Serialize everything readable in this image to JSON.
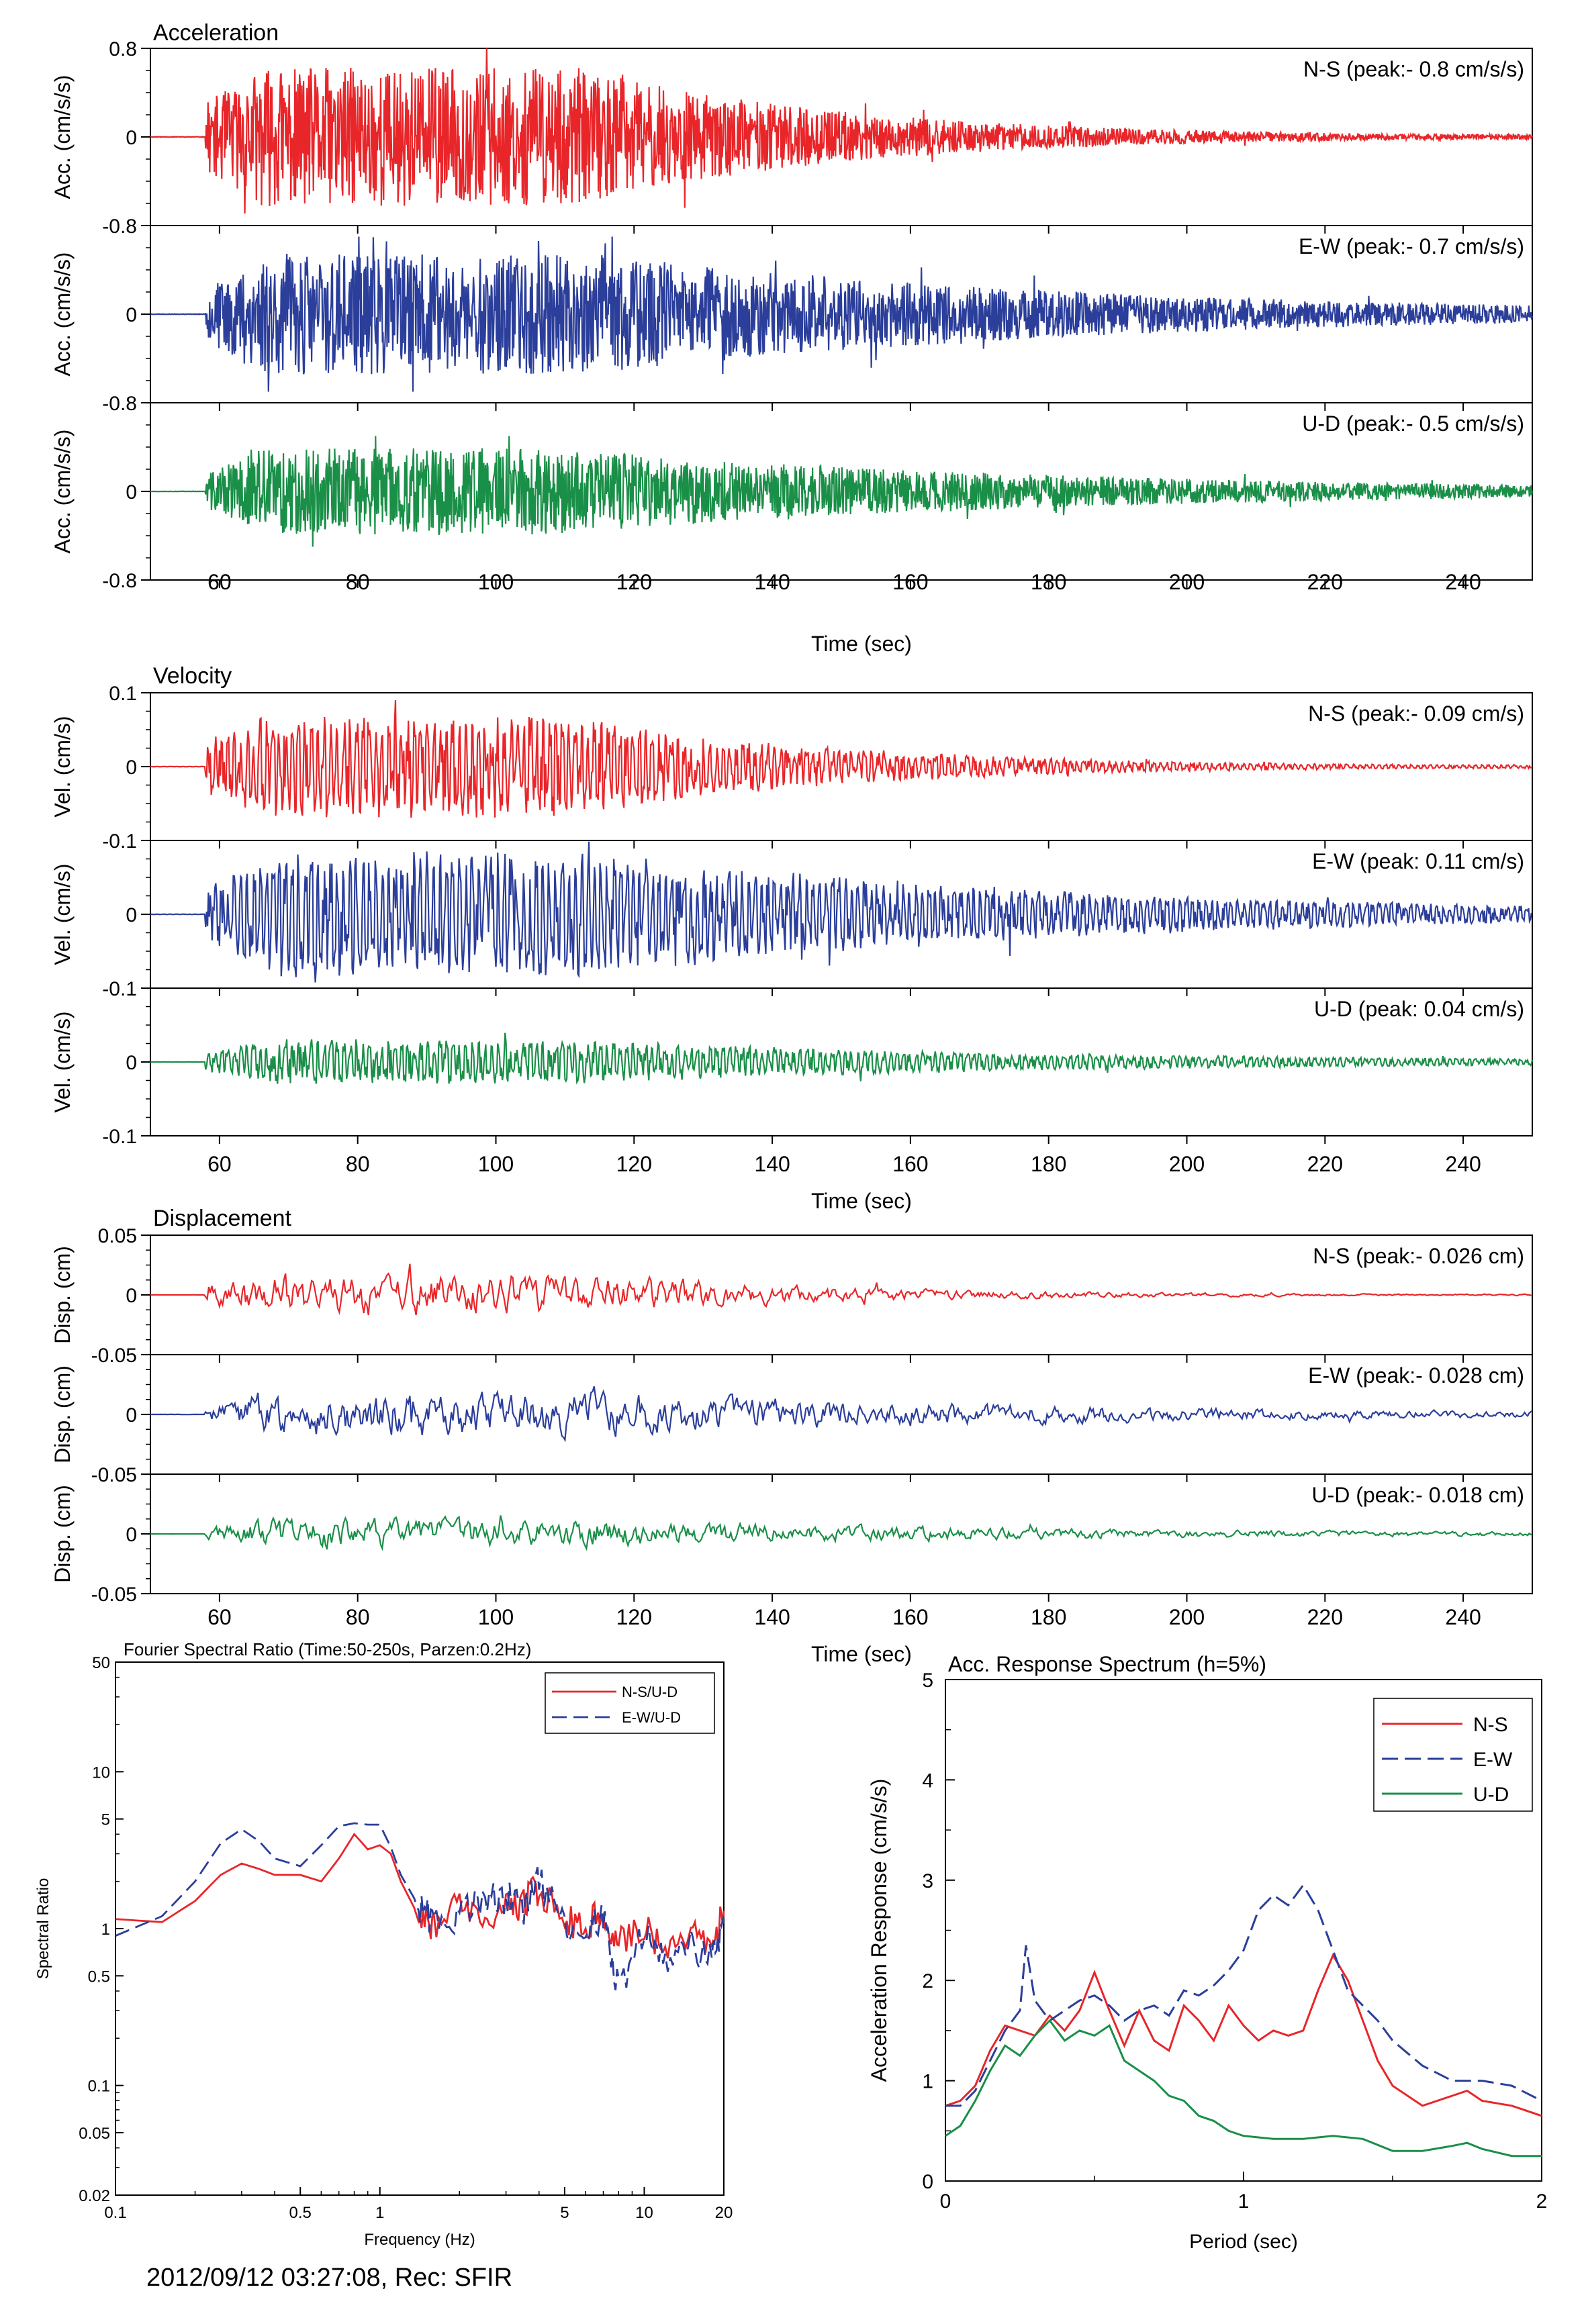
{
  "footer": "2012/09/12 03:27:08, Rec: SFIR",
  "colors": {
    "ns": "#e8262a",
    "ew": "#2b3e9a",
    "ud": "#1a8f48",
    "axis": "#000000"
  },
  "chart_data": [
    {
      "type": "line",
      "title": "Acceleration",
      "xlabel": "Time (sec)",
      "xlim": [
        50,
        250
      ],
      "xticks": [
        60,
        80,
        100,
        120,
        140,
        160,
        180,
        200,
        220,
        240
      ],
      "panels": [
        {
          "component": "N-S",
          "label": "N-S (peak:- 0.8 cm/s/s)",
          "ylabel": "Acc. (cm/s/s)",
          "ylim": [
            -0.8,
            0.8
          ],
          "yticks": [
            "0.8",
            "0",
            "-0.8"
          ],
          "peak": 0.8,
          "color": "#e8262a",
          "seed": 11
        },
        {
          "component": "E-W",
          "label": "E-W (peak:- 0.7 cm/s/s)",
          "ylabel": "Acc. (cm/s/s)",
          "ylim": [
            -0.8,
            0.8
          ],
          "yticks": [
            "",
            "0",
            "-0.8"
          ],
          "peak": 0.7,
          "color": "#2b3e9a",
          "seed": 23
        },
        {
          "component": "U-D",
          "label": "U-D (peak:- 0.5 cm/s/s)",
          "ylabel": "Acc. (cm/s/s)",
          "ylim": [
            -0.8,
            0.8
          ],
          "yticks": [
            "",
            "0",
            "-0.8"
          ],
          "peak": 0.5,
          "color": "#1a8f48",
          "seed": 37
        }
      ]
    },
    {
      "type": "line",
      "title": "Velocity",
      "xlabel": "Time (sec)",
      "xlim": [
        50,
        250
      ],
      "xticks": [
        60,
        80,
        100,
        120,
        140,
        160,
        180,
        200,
        220,
        240
      ],
      "panels": [
        {
          "component": "N-S",
          "label": "N-S (peak:- 0.09 cm/s)",
          "ylabel": "Vel. (cm/s)",
          "ylim": [
            -0.1,
            0.1
          ],
          "yticks": [
            "0.1",
            "0",
            "-0.1"
          ],
          "peak": 0.09,
          "color": "#e8262a",
          "seed": 41
        },
        {
          "component": "E-W",
          "label": "E-W (peak: 0.11 cm/s)",
          "ylabel": "Vel. (cm/s)",
          "ylim": [
            -0.1,
            0.1
          ],
          "yticks": [
            "",
            "0",
            "-0.1"
          ],
          "peak": 0.11,
          "color": "#2b3e9a",
          "seed": 53
        },
        {
          "component": "U-D",
          "label": "U-D (peak: 0.04 cm/s)",
          "ylabel": "Vel. (cm/s)",
          "ylim": [
            -0.1,
            0.1
          ],
          "yticks": [
            "",
            "0",
            "-0.1"
          ],
          "peak": 0.04,
          "color": "#1a8f48",
          "seed": 67
        }
      ]
    },
    {
      "type": "line",
      "title": "Displacement",
      "xlabel": "Time (sec)",
      "xlim": [
        50,
        250
      ],
      "xticks": [
        60,
        80,
        100,
        120,
        140,
        160,
        180,
        200,
        220,
        240
      ],
      "panels": [
        {
          "component": "N-S",
          "label": "N-S (peak:- 0.026 cm)",
          "ylabel": "Disp. (cm)",
          "ylim": [
            -0.05,
            0.05
          ],
          "yticks": [
            "0.05",
            "0",
            "-0.05"
          ],
          "peak": 0.026,
          "color": "#e8262a",
          "seed": 71
        },
        {
          "component": "E-W",
          "label": "E-W (peak:- 0.028 cm)",
          "ylabel": "Disp. (cm)",
          "ylim": [
            -0.05,
            0.05
          ],
          "yticks": [
            "",
            "0",
            "-0.05"
          ],
          "peak": 0.028,
          "color": "#2b3e9a",
          "seed": 83
        },
        {
          "component": "U-D",
          "label": "U-D (peak:- 0.018 cm)",
          "ylabel": "Disp. (cm)",
          "ylim": [
            -0.05,
            0.05
          ],
          "yticks": [
            "",
            "0",
            "-0.05"
          ],
          "peak": 0.018,
          "color": "#1a8f48",
          "seed": 97
        }
      ]
    },
    {
      "type": "line",
      "title": "Fourier Spectral Ratio (Time:50-250s, Parzen:0.2Hz)",
      "xlabel": "Frequency (Hz)",
      "ylabel": "Spectral Ratio",
      "xscale": "log",
      "yscale": "log",
      "xlim": [
        0.1,
        20
      ],
      "ylim": [
        0.02,
        50
      ],
      "xticks": [
        "0.1",
        "0.5",
        "1",
        "5",
        "10",
        "20"
      ],
      "yticks": [
        "50",
        "10",
        "5",
        "1",
        "0.5",
        "0.1",
        "0.05",
        "0.02"
      ],
      "legend_position": "top-right",
      "series": [
        {
          "name": "N-S/U-D",
          "color": "#e8262a",
          "dash": "solid",
          "x": [
            0.1,
            0.15,
            0.2,
            0.25,
            0.3,
            0.35,
            0.4,
            0.5,
            0.6,
            0.7,
            0.8,
            0.9,
            1.0,
            1.1,
            1.2,
            1.4,
            1.6,
            2.0,
            2.5,
            3.0,
            3.5,
            4.0,
            5.0,
            6.0,
            7.0,
            8.0,
            10.0,
            12.0,
            15.0,
            18.0,
            20.0
          ],
          "y": [
            1.15,
            1.1,
            1.5,
            2.2,
            2.6,
            2.4,
            2.2,
            2.2,
            2.0,
            2.8,
            4.0,
            3.2,
            3.4,
            3.0,
            2.0,
            1.2,
            1.0,
            1.4,
            1.1,
            1.3,
            1.5,
            1.8,
            1.2,
            1.0,
            1.3,
            0.8,
            1.1,
            0.7,
            0.9,
            0.7,
            1.3
          ]
        },
        {
          "name": "E-W/U-D",
          "color": "#2b3e9a",
          "dash": "dashed",
          "x": [
            0.1,
            0.15,
            0.2,
            0.25,
            0.3,
            0.35,
            0.4,
            0.5,
            0.6,
            0.7,
            0.8,
            0.9,
            1.0,
            1.1,
            1.2,
            1.4,
            1.6,
            2.0,
            2.5,
            3.0,
            3.5,
            4.0,
            5.0,
            6.0,
            7.0,
            8.0,
            10.0,
            12.0,
            15.0,
            18.0,
            20.0
          ],
          "y": [
            0.9,
            1.2,
            2.0,
            3.5,
            4.3,
            3.6,
            2.8,
            2.5,
            3.4,
            4.5,
            4.7,
            4.6,
            4.6,
            3.3,
            2.2,
            1.4,
            1.1,
            1.2,
            1.5,
            1.6,
            1.3,
            2.0,
            1.1,
            0.9,
            1.2,
            0.4,
            1.0,
            0.6,
            0.8,
            0.6,
            1.2
          ]
        }
      ]
    },
    {
      "type": "line",
      "title": "Acc. Response Spectrum (h=5%)",
      "xlabel": "Period (sec)",
      "ylabel": "Acceleration Response (cm/s/s)",
      "xlim": [
        0,
        2
      ],
      "ylim": [
        0,
        5
      ],
      "xticks": [
        "0",
        "1",
        "2"
      ],
      "yticks": [
        "0",
        "1",
        "2",
        "3",
        "4",
        "5"
      ],
      "legend_position": "top-right",
      "series": [
        {
          "name": "N-S",
          "color": "#e8262a",
          "dash": "solid",
          "x": [
            0.0,
            0.05,
            0.1,
            0.15,
            0.2,
            0.25,
            0.3,
            0.35,
            0.4,
            0.45,
            0.5,
            0.55,
            0.6,
            0.65,
            0.7,
            0.75,
            0.8,
            0.85,
            0.9,
            0.95,
            1.0,
            1.05,
            1.1,
            1.15,
            1.2,
            1.25,
            1.3,
            1.35,
            1.4,
            1.45,
            1.5,
            1.6,
            1.7,
            1.75,
            1.8,
            1.9,
            2.0
          ],
          "y": [
            0.75,
            0.8,
            0.95,
            1.3,
            1.55,
            1.5,
            1.45,
            1.65,
            1.5,
            1.7,
            2.08,
            1.7,
            1.35,
            1.7,
            1.4,
            1.3,
            1.75,
            1.6,
            1.4,
            1.75,
            1.55,
            1.4,
            1.5,
            1.45,
            1.5,
            1.9,
            2.25,
            2.0,
            1.6,
            1.2,
            0.95,
            0.75,
            0.85,
            0.9,
            0.8,
            0.75,
            0.65
          ]
        },
        {
          "name": "E-W",
          "color": "#2b3e9a",
          "dash": "dashed",
          "x": [
            0.0,
            0.05,
            0.1,
            0.15,
            0.2,
            0.25,
            0.27,
            0.3,
            0.35,
            0.4,
            0.45,
            0.5,
            0.55,
            0.6,
            0.65,
            0.7,
            0.75,
            0.8,
            0.85,
            0.9,
            0.95,
            1.0,
            1.05,
            1.1,
            1.15,
            1.2,
            1.25,
            1.3,
            1.35,
            1.4,
            1.45,
            1.5,
            1.6,
            1.7,
            1.8,
            1.9,
            2.0
          ],
          "y": [
            0.75,
            0.75,
            0.9,
            1.2,
            1.5,
            1.7,
            2.35,
            1.8,
            1.6,
            1.7,
            1.8,
            1.85,
            1.75,
            1.6,
            1.7,
            1.75,
            1.65,
            1.9,
            1.85,
            1.95,
            2.1,
            2.3,
            2.7,
            2.85,
            2.75,
            2.95,
            2.7,
            2.3,
            1.9,
            1.75,
            1.6,
            1.4,
            1.15,
            1.0,
            1.0,
            0.95,
            0.8
          ]
        },
        {
          "name": "U-D",
          "color": "#1a8f48",
          "dash": "solid",
          "x": [
            0.0,
            0.05,
            0.1,
            0.15,
            0.2,
            0.25,
            0.3,
            0.35,
            0.4,
            0.45,
            0.5,
            0.55,
            0.6,
            0.65,
            0.7,
            0.75,
            0.8,
            0.85,
            0.9,
            0.95,
            1.0,
            1.1,
            1.2,
            1.3,
            1.4,
            1.5,
            1.6,
            1.7,
            1.75,
            1.8,
            1.9,
            2.0
          ],
          "y": [
            0.45,
            0.55,
            0.8,
            1.1,
            1.35,
            1.25,
            1.45,
            1.6,
            1.4,
            1.5,
            1.45,
            1.55,
            1.2,
            1.1,
            1.0,
            0.85,
            0.8,
            0.65,
            0.6,
            0.5,
            0.45,
            0.42,
            0.42,
            0.45,
            0.42,
            0.3,
            0.3,
            0.35,
            0.38,
            0.32,
            0.25,
            0.25
          ]
        }
      ]
    }
  ]
}
